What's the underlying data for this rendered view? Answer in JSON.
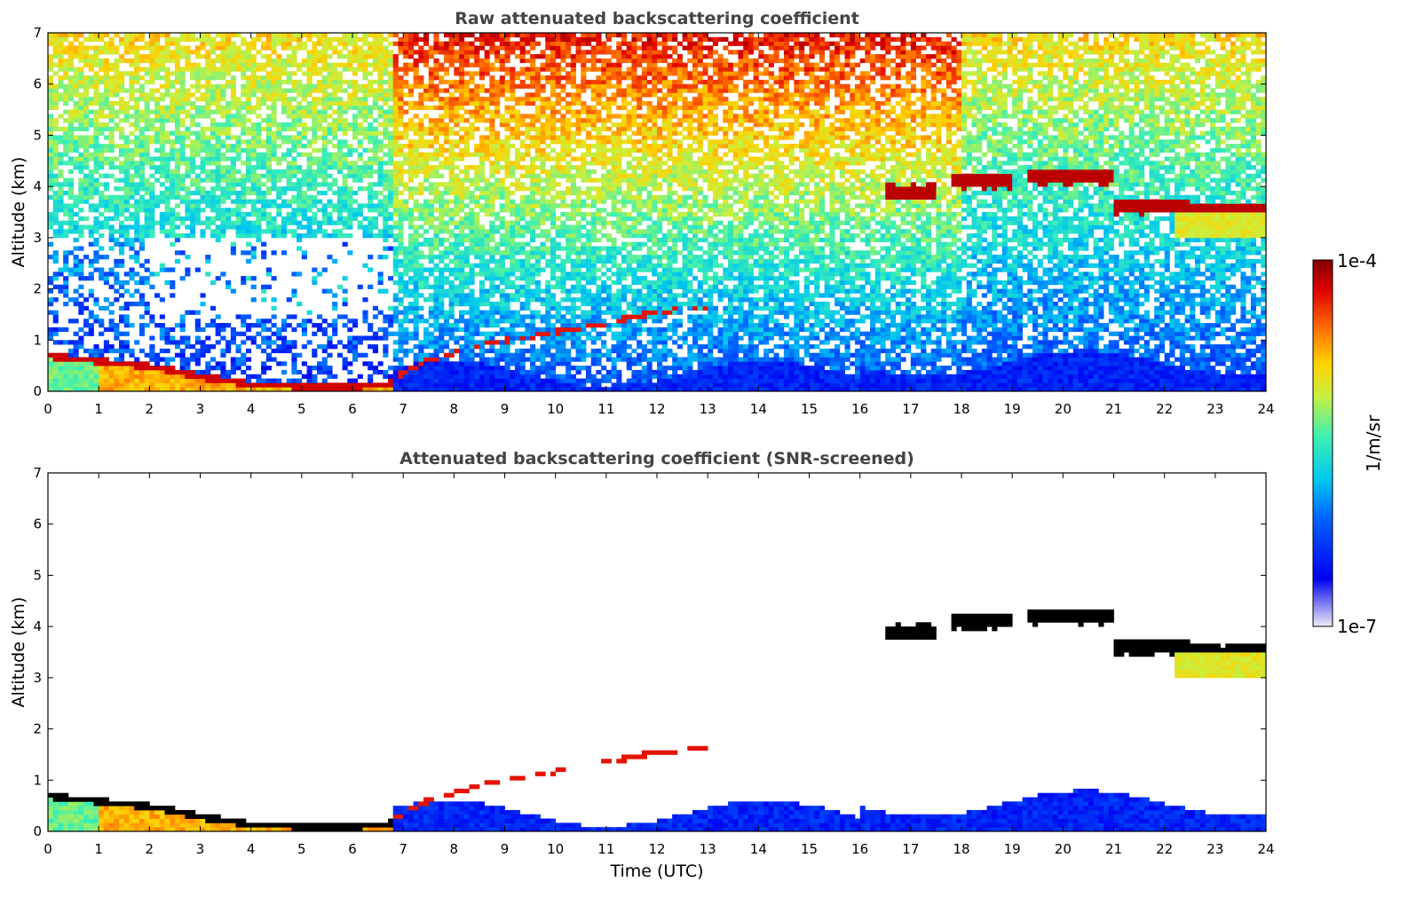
{
  "chart_data": [
    {
      "type": "heatmap",
      "title": "Raw attenuated backscattering coefficient",
      "xlabel": "",
      "ylabel": "Altitude (km)",
      "xlim": [
        0,
        24
      ],
      "ylim": [
        0,
        7
      ],
      "xticks": [
        "0",
        "1",
        "2",
        "3",
        "4",
        "5",
        "6",
        "7",
        "8",
        "9",
        "10",
        "11",
        "12",
        "13",
        "14",
        "15",
        "16",
        "17",
        "18",
        "19",
        "20",
        "21",
        "22",
        "23",
        "24"
      ],
      "yticks": [
        "0",
        "1",
        "2",
        "3",
        "4",
        "5",
        "6",
        "7"
      ],
      "features": {
        "boundary_layer_top_km": [
          [
            0,
            0.75
          ],
          [
            1,
            0.65
          ],
          [
            2,
            0.55
          ],
          [
            3,
            0.35
          ],
          [
            4,
            0.2
          ],
          [
            5,
            0.15
          ],
          [
            6,
            0.15
          ],
          [
            6.7,
            0.2
          ],
          [
            7.5,
            0.6
          ],
          [
            8.5,
            0.9
          ],
          [
            10,
            1.15
          ],
          [
            12,
            1.55
          ],
          [
            13,
            1.65
          ]
        ],
        "cloud_layers_km": [
          {
            "x": [
              16.5,
              17.5
            ],
            "y": 3.9
          },
          {
            "x": [
              17.8,
              19.0
            ],
            "y": 4.1
          },
          {
            "x": [
              19.3,
              21.0
            ],
            "y": 4.2
          },
          {
            "x": [
              21.0,
              22.5
            ],
            "y": 3.6
          },
          {
            "x": [
              22.3,
              24.0
            ],
            "y": 3.5
          }
        ]
      }
    },
    {
      "type": "heatmap",
      "title": "Attenuated backscattering coefficient (SNR-screened)",
      "xlabel": "Time (UTC)",
      "ylabel": "Altitude (km)",
      "xlim": [
        0,
        24
      ],
      "ylim": [
        0,
        7
      ],
      "xticks": [
        "0",
        "1",
        "2",
        "3",
        "4",
        "5",
        "6",
        "7",
        "8",
        "9",
        "10",
        "11",
        "12",
        "13",
        "14",
        "15",
        "16",
        "17",
        "18",
        "19",
        "20",
        "21",
        "22",
        "23",
        "24"
      ],
      "yticks": [
        "0",
        "1",
        "2",
        "3",
        "4",
        "5",
        "6",
        "7"
      ]
    }
  ],
  "colorbar": {
    "label": "1/m/sr",
    "min_label": "1e-7",
    "max_label": "1e-4",
    "scale": "log",
    "colormap": "jet"
  }
}
